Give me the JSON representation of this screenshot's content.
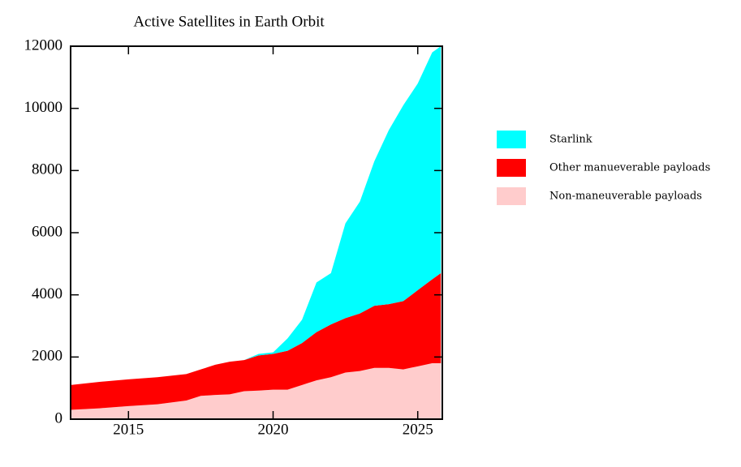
{
  "chart_data": {
    "type": "stacked-area",
    "title": "Active Satellites in Earth Orbit",
    "x": [
      2013,
      2014,
      2015,
      2016,
      2017,
      2017.5,
      2018,
      2018.5,
      2019,
      2019.5,
      2020,
      2020.5,
      2021,
      2021.5,
      2022,
      2022.5,
      2023,
      2023.5,
      2024,
      2024.5,
      2025,
      2025.5,
      2025.8
    ],
    "series": [
      {
        "name": "Non-maneuverable payloads",
        "color": "#ffcccc",
        "values": [
          300,
          350,
          420,
          480,
          600,
          750,
          780,
          800,
          900,
          920,
          950,
          950,
          1100,
          1250,
          1350,
          1500,
          1550,
          1650,
          1650,
          1600,
          1700,
          1800,
          1800
        ]
      },
      {
        "name": "Other manueverable payloads",
        "color": "#ff0000",
        "values": [
          800,
          850,
          860,
          870,
          850,
          850,
          970,
          1050,
          1000,
          1130,
          1150,
          1250,
          1350,
          1550,
          1700,
          1750,
          1850,
          2000,
          2050,
          2200,
          2450,
          2700,
          2900
        ]
      },
      {
        "name": "Starlink",
        "color": "#00ffff",
        "values": [
          0,
          0,
          0,
          0,
          0,
          0,
          0,
          0,
          0,
          50,
          50,
          400,
          750,
          1600,
          1650,
          3050,
          3600,
          4650,
          5600,
          6300,
          6650,
          7300,
          7300
        ]
      }
    ],
    "xlim": [
      2013,
      2025.85
    ],
    "xticks": [
      2015,
      2020,
      2025
    ],
    "ylim": [
      0,
      12000
    ],
    "yticks": [
      0,
      2000,
      4000,
      6000,
      8000,
      10000,
      12000
    ],
    "legend": "right"
  }
}
